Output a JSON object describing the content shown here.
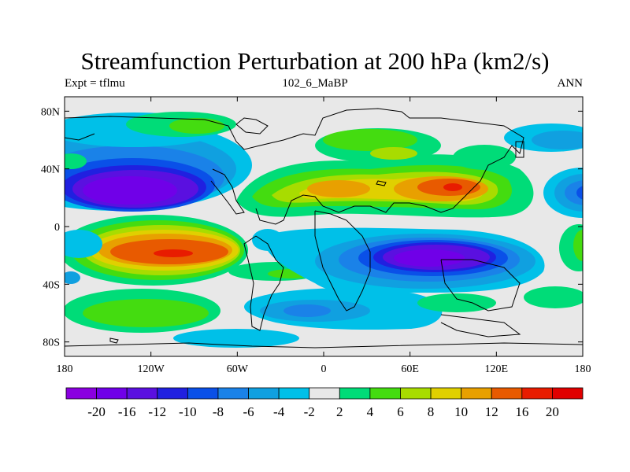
{
  "chart_data": {
    "type": "heatmap",
    "title": "Streamfunction Perturbation at 200 hPa (km2/s)",
    "left_string": "Expt = tflmu",
    "center_string": "102_6_MaBP",
    "right_string": "ANN",
    "x_ticks": [
      "180",
      "120W",
      "60W",
      "0",
      "60E",
      "120E",
      "180"
    ],
    "x_tick_values": [
      -180,
      -120,
      -60,
      0,
      60,
      120,
      180
    ],
    "y_ticks": [
      "80N",
      "40N",
      "0",
      "40S",
      "80S"
    ],
    "y_tick_values": [
      80,
      40,
      0,
      -40,
      -80
    ],
    "xlim": [
      -180,
      180
    ],
    "ylim": [
      -90,
      90
    ],
    "colorbar": {
      "labels": [
        "-20",
        "-16",
        "-12",
        "-10",
        "-8",
        "-6",
        "-4",
        "-2",
        "2",
        "4",
        "6",
        "8",
        "10",
        "12",
        "16",
        "20"
      ],
      "levels": [
        -20,
        -16,
        -12,
        -10,
        -8,
        -6,
        -4,
        -2,
        2,
        4,
        6,
        8,
        10,
        12,
        16,
        20
      ],
      "colors": [
        "#8a00e0",
        "#7000e8",
        "#5a10e0",
        "#2020e0",
        "#0a50e8",
        "#1a82e8",
        "#10a0e0",
        "#00c0e8",
        "#e8e8e8",
        "#00dc78",
        "#44dc10",
        "#a8dc00",
        "#e0d000",
        "#e8a000",
        "#e85a00",
        "#e81c00",
        "#e00000"
      ]
    },
    "features": [
      {
        "name": "low_north_pacific",
        "lon": -135,
        "lat": 25,
        "min": -20
      },
      {
        "name": "high_south_pacific",
        "lon": -110,
        "lat": -20,
        "max": 16
      },
      {
        "name": "high_south_asia",
        "lon": 85,
        "lat": 27,
        "max": 16
      },
      {
        "name": "high_north_africa",
        "lon": 10,
        "lat": 25,
        "max": 12
      },
      {
        "name": "low_indian_ocean",
        "lon": 80,
        "lat": -25,
        "min": -20
      },
      {
        "name": "low_east_pacific_north",
        "lon": 175,
        "lat": 22,
        "min": -10
      }
    ]
  }
}
